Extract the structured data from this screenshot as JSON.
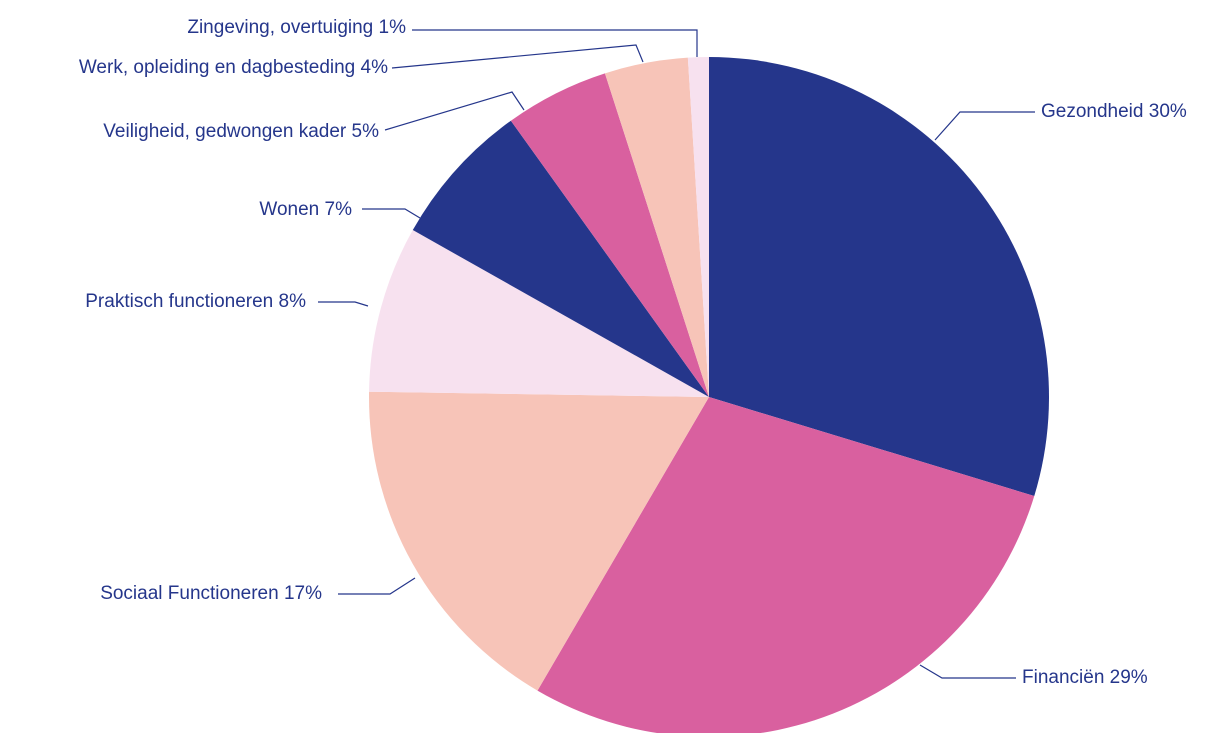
{
  "chart_data": {
    "type": "pie",
    "categories": [
      "Gezondheid",
      "Financiën",
      "Sociaal Functioneren",
      "Praktisch functioneren",
      "Wonen",
      "Veiligheid, gedwongen kader",
      "Werk, opleiding en dagbesteding",
      "Zingeving, overtuiging"
    ],
    "values": [
      30,
      29,
      17,
      8,
      7,
      5,
      4,
      1
    ],
    "value_labels": [
      "30%",
      "29%",
      "17%",
      "8%",
      "7%",
      "5%",
      "4%",
      "1%"
    ],
    "colors": [
      "#25368b",
      "#d9609f",
      "#f7c4b8",
      "#f7e1ef",
      "#25368b",
      "#d9609f",
      "#f7c4b8",
      "#f7e1ef"
    ]
  }
}
